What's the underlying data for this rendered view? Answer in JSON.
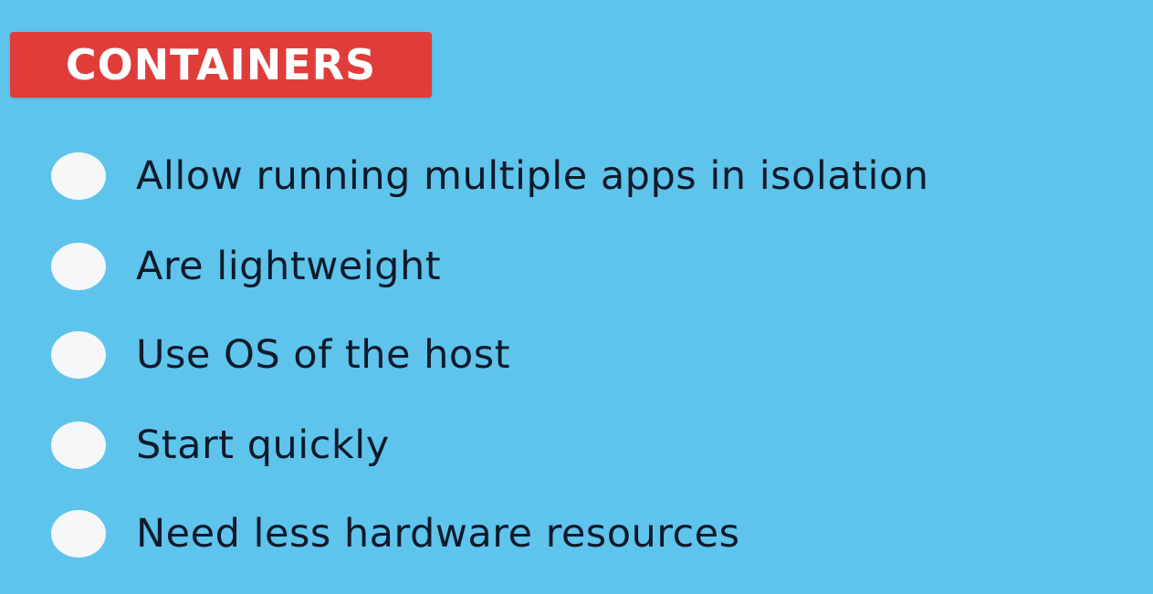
{
  "slide": {
    "background_color": "#5ec4ec",
    "title": {
      "text": "CONTAINERS",
      "badge_color": "#e03d3a"
    },
    "bullets": [
      "Allow running multiple apps in isolation",
      "Are lightweight",
      "Use OS of the host",
      "Start quickly",
      "Need less hardware resources"
    ]
  }
}
